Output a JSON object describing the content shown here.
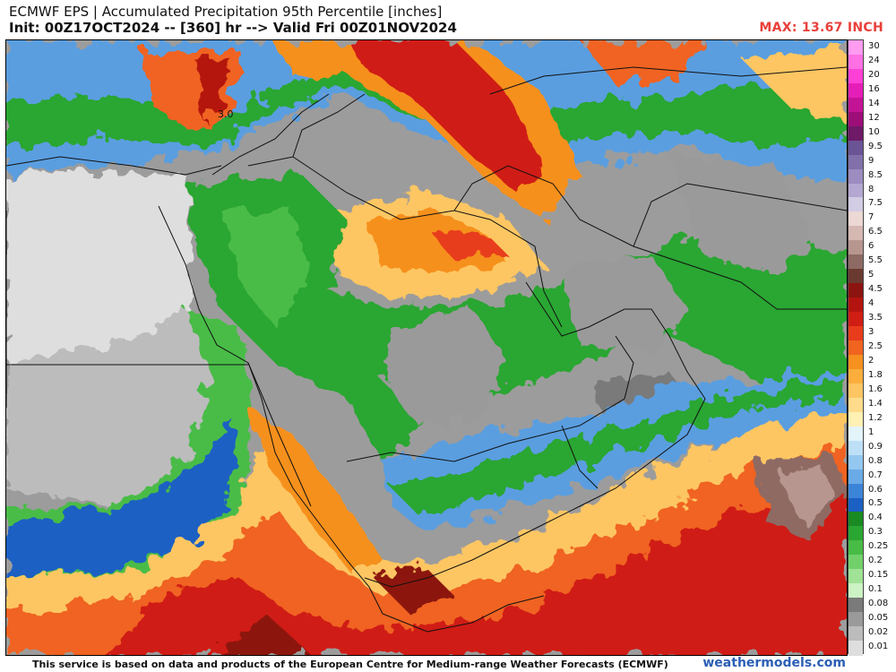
{
  "header": {
    "title_line1": "ECMWF EPS | Accumulated Precipitation 95th Percentile [inches]",
    "title_line2": "Init: 00Z17OCT2024 -- [360] hr --> Valid Fri 00Z01NOV2024",
    "max_label": "MAX: 13.67 INCH"
  },
  "map": {
    "point_label": "3.0",
    "region": "Middle East / Arabian Peninsula / Horn of Africa"
  },
  "colorbar": {
    "levels": [
      {
        "label": "30",
        "color": "#ff9cf0"
      },
      {
        "label": "24",
        "color": "#ff70e4"
      },
      {
        "label": "20",
        "color": "#ff40d6"
      },
      {
        "label": "16",
        "color": "#e61eb8"
      },
      {
        "label": "14",
        "color": "#c41496"
      },
      {
        "label": "12",
        "color": "#9e0e78"
      },
      {
        "label": "10",
        "color": "#6e1a66"
      },
      {
        "label": "9.5",
        "color": "#6a5496"
      },
      {
        "label": "9",
        "color": "#8270aa"
      },
      {
        "label": "8.5",
        "color": "#9c8cc0"
      },
      {
        "label": "8",
        "color": "#b4a8d2"
      },
      {
        "label": "7.5",
        "color": "#d2cce4"
      },
      {
        "label": "7",
        "color": "#ecd8d4"
      },
      {
        "label": "6.5",
        "color": "#d6b8b2"
      },
      {
        "label": "6",
        "color": "#b89690"
      },
      {
        "label": "5.5",
        "color": "#8e6a64"
      },
      {
        "label": "5",
        "color": "#6a3a30"
      },
      {
        "label": "4.5",
        "color": "#8c1410"
      },
      {
        "label": "4",
        "color": "#b41410"
      },
      {
        "label": "3.5",
        "color": "#d01e14"
      },
      {
        "label": "3",
        "color": "#e83c1c"
      },
      {
        "label": "2.5",
        "color": "#f06420"
      },
      {
        "label": "2",
        "color": "#f6901e"
      },
      {
        "label": "1.8",
        "color": "#fbae3c"
      },
      {
        "label": "1.6",
        "color": "#fdc662"
      },
      {
        "label": "1.4",
        "color": "#fedc8c"
      },
      {
        "label": "1.2",
        "color": "#fff0b4"
      },
      {
        "label": "1",
        "color": "#e4f4fb"
      },
      {
        "label": "0.9",
        "color": "#bde0f6"
      },
      {
        "label": "0.8",
        "color": "#94c8f0"
      },
      {
        "label": "0.7",
        "color": "#6aaae6"
      },
      {
        "label": "0.6",
        "color": "#3c84d8"
      },
      {
        "label": "0.5",
        "color": "#1c60c4"
      },
      {
        "label": "0.4",
        "color": "#1a8a22"
      },
      {
        "label": "0.3",
        "color": "#2aa632"
      },
      {
        "label": "0.25",
        "color": "#48bc46"
      },
      {
        "label": "0.2",
        "color": "#72d06a"
      },
      {
        "label": "0.15",
        "color": "#a0e296"
      },
      {
        "label": "0.1",
        "color": "#cdf2c4"
      },
      {
        "label": "0.08",
        "color": "#7a7a7a"
      },
      {
        "label": "0.05",
        "color": "#9a9a9a"
      },
      {
        "label": "0.02",
        "color": "#bcbcbc"
      },
      {
        "label": "0.01",
        "color": "#dedede"
      }
    ]
  },
  "footer": {
    "attribution": "This service is based on data and products of the European Centre for Medium-range Weather Forecasts (ECMWF)",
    "brand": "weathermodels.com"
  }
}
